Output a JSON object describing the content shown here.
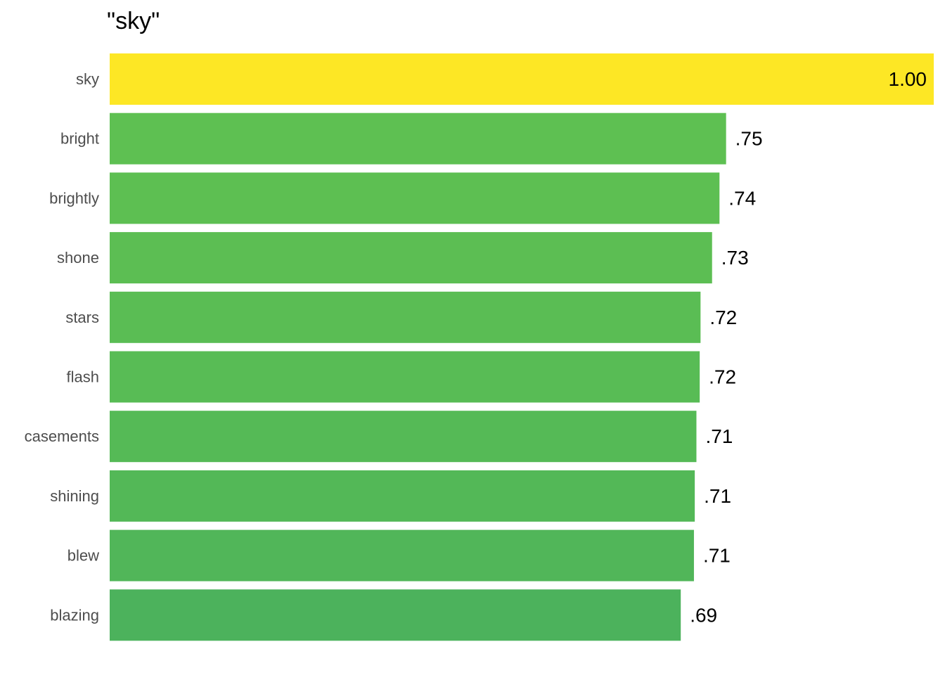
{
  "chart_data": {
    "type": "bar",
    "orientation": "horizontal",
    "title": "\"sky\"",
    "xlabel": "",
    "ylabel": "",
    "xlim": [
      0,
      1
    ],
    "grid": false,
    "legend": "none",
    "categories": [
      "sky",
      "bright",
      "brightly",
      "shone",
      "stars",
      "flash",
      "casements",
      "shining",
      "blew",
      "blazing"
    ],
    "values": [
      1.0,
      0.748,
      0.74,
      0.731,
      0.717,
      0.716,
      0.712,
      0.71,
      0.709,
      0.693
    ],
    "value_labels": [
      "1.00",
      ".75",
      ".74",
      ".73",
      ".72",
      ".72",
      ".71",
      ".71",
      ".71",
      ".69"
    ],
    "colors": [
      "#fde725",
      "#5ec052",
      "#5dbf52",
      "#5cbe53",
      "#5abd54",
      "#58bc55",
      "#55ba56",
      "#53b857",
      "#51b659",
      "#4cb25c"
    ]
  }
}
